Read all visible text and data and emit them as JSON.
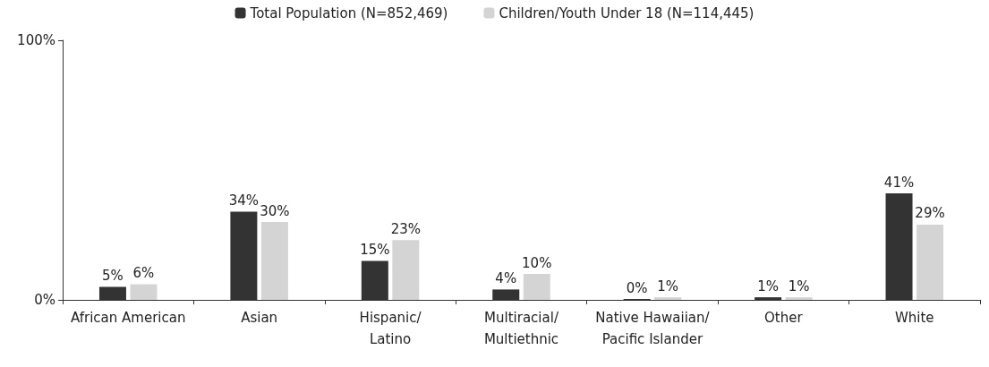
{
  "chart_data": {
    "type": "bar",
    "categories": [
      "African American",
      "Asian",
      "Hispanic/\nLatino",
      "Multiracial/\nMultiethnic",
      "Native Hawaiian/\nPacific Islander",
      "Other",
      "White"
    ],
    "series": [
      {
        "name": "Total Population (N=852,469)",
        "color": "#333333",
        "values": [
          5,
          34,
          15,
          4,
          0,
          1,
          41
        ],
        "value_labels": [
          "5%",
          "34%",
          "15%",
          "4%",
          "0%",
          "1%",
          "41%"
        ]
      },
      {
        "name": "Children/Youth Under 18 (N=114,445)",
        "color": "#d4d4d4",
        "values": [
          6,
          30,
          23,
          10,
          1,
          1,
          29
        ],
        "value_labels": [
          "6%",
          "30%",
          "23%",
          "10%",
          "1%",
          "1%",
          "29%"
        ]
      }
    ],
    "ylim": [
      0,
      100
    ],
    "yticks": [
      {
        "value": 0,
        "label": "0%"
      },
      {
        "value": 100,
        "label": "100%"
      }
    ],
    "grid": false,
    "legend": "top"
  }
}
